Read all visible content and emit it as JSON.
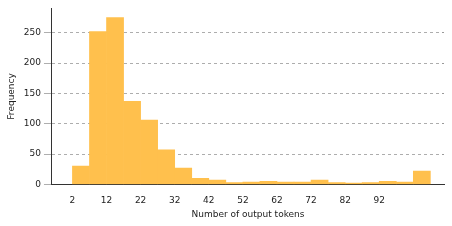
{
  "chart_data": {
    "type": "histogram",
    "x_label": "Number of output tokens",
    "y_label": "Frequency",
    "bins": [
      2,
      7,
      12,
      17,
      22,
      27,
      32,
      37,
      42,
      47,
      52,
      57,
      62,
      67,
      72,
      77,
      82,
      87,
      92,
      97,
      102,
      107
    ],
    "values": [
      30,
      252,
      275,
      137,
      106,
      57,
      27,
      10,
      7,
      3,
      4,
      5,
      4,
      4,
      7,
      3,
      2,
      3,
      5,
      4,
      22
    ],
    "color": "#ffc04d",
    "xlim": [
      -4,
      111
    ],
    "xticks": [
      2,
      12,
      22,
      32,
      42,
      52,
      62,
      72,
      82,
      92
    ],
    "ylim": [
      0,
      290
    ],
    "yticks": [
      0,
      50,
      100,
      150,
      200,
      250
    ],
    "grid": true
  }
}
